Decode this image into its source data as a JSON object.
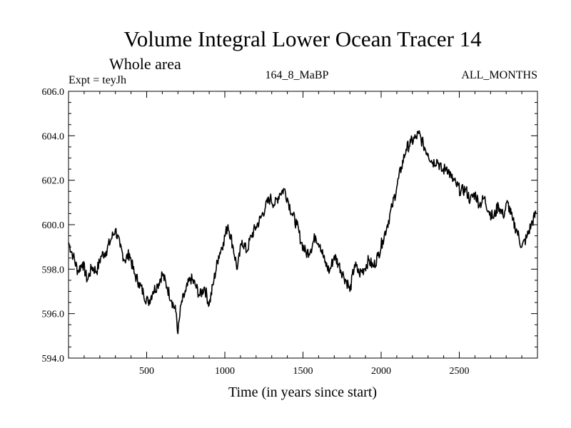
{
  "chart_data": {
    "type": "line",
    "title": "Volume Integral Lower Ocean Tracer 14",
    "subtitle": "Whole area",
    "experiment_label": "Expt = teyJh",
    "center_label": "164_8_MaBP",
    "right_label": "ALL_MONTHS",
    "xlabel": "Time (in years since start)",
    "ylabel": "",
    "xlim": [
      0,
      3000
    ],
    "ylim": [
      594,
      606
    ],
    "x_ticks": [
      500,
      1000,
      1500,
      2000,
      2500
    ],
    "x_tick_labels": [
      "500",
      "1000",
      "1500",
      "2000",
      "2500"
    ],
    "y_ticks": [
      594,
      596,
      598,
      600,
      602,
      604,
      606
    ],
    "y_tick_labels": [
      "594.0",
      "596.0",
      "598.0",
      "600.0",
      "602.0",
      "604.0",
      "606.0"
    ],
    "grid": false,
    "series": [
      {
        "name": "Lower Ocean Tracer 14",
        "x": [
          0,
          30,
          60,
          90,
          120,
          150,
          180,
          210,
          240,
          270,
          300,
          330,
          360,
          390,
          420,
          450,
          480,
          510,
          540,
          570,
          600,
          630,
          660,
          690,
          700,
          720,
          750,
          780,
          810,
          840,
          870,
          900,
          930,
          960,
          990,
          1020,
          1050,
          1080,
          1110,
          1140,
          1170,
          1200,
          1230,
          1260,
          1290,
          1320,
          1350,
          1380,
          1400,
          1430,
          1460,
          1490,
          1520,
          1550,
          1580,
          1610,
          1640,
          1670,
          1700,
          1730,
          1760,
          1790,
          1800,
          1830,
          1860,
          1890,
          1920,
          1950,
          1980,
          2010,
          2040,
          2070,
          2100,
          2130,
          2160,
          2190,
          2220,
          2240,
          2270,
          2300,
          2330,
          2360,
          2390,
          2420,
          2450,
          2480,
          2510,
          2540,
          2570,
          2600,
          2630,
          2660,
          2690,
          2720,
          2750,
          2780,
          2810,
          2840,
          2870,
          2900,
          2930,
          2960,
          2990
        ],
        "values": [
          599.2,
          598.6,
          597.9,
          598.3,
          597.5,
          598.1,
          597.9,
          598.6,
          598.8,
          599.3,
          599.8,
          599.0,
          598.4,
          598.7,
          597.8,
          597.4,
          596.9,
          596.5,
          597.0,
          597.3,
          597.8,
          597.2,
          596.6,
          596.0,
          595.1,
          596.4,
          597.0,
          597.6,
          597.3,
          596.8,
          597.2,
          596.4,
          597.5,
          598.6,
          599.2,
          600.0,
          599.1,
          598.0,
          599.3,
          598.8,
          599.5,
          599.9,
          600.3,
          600.8,
          601.2,
          600.9,
          601.4,
          601.6,
          601.2,
          600.5,
          600.0,
          599.2,
          598.7,
          598.9,
          599.5,
          599.1,
          598.3,
          597.9,
          598.6,
          598.2,
          597.7,
          597.3,
          597.0,
          598.2,
          597.8,
          598.0,
          598.4,
          598.1,
          598.6,
          599.3,
          600.0,
          600.8,
          601.7,
          602.6,
          603.4,
          603.7,
          603.9,
          604.1,
          603.6,
          603.2,
          602.8,
          602.9,
          602.4,
          602.6,
          602.1,
          601.8,
          601.5,
          601.6,
          601.1,
          601.4,
          600.9,
          601.2,
          600.6,
          600.3,
          600.9,
          600.4,
          601.0,
          600.2,
          599.7,
          599.0,
          599.4,
          600.0,
          600.5
        ]
      }
    ]
  }
}
